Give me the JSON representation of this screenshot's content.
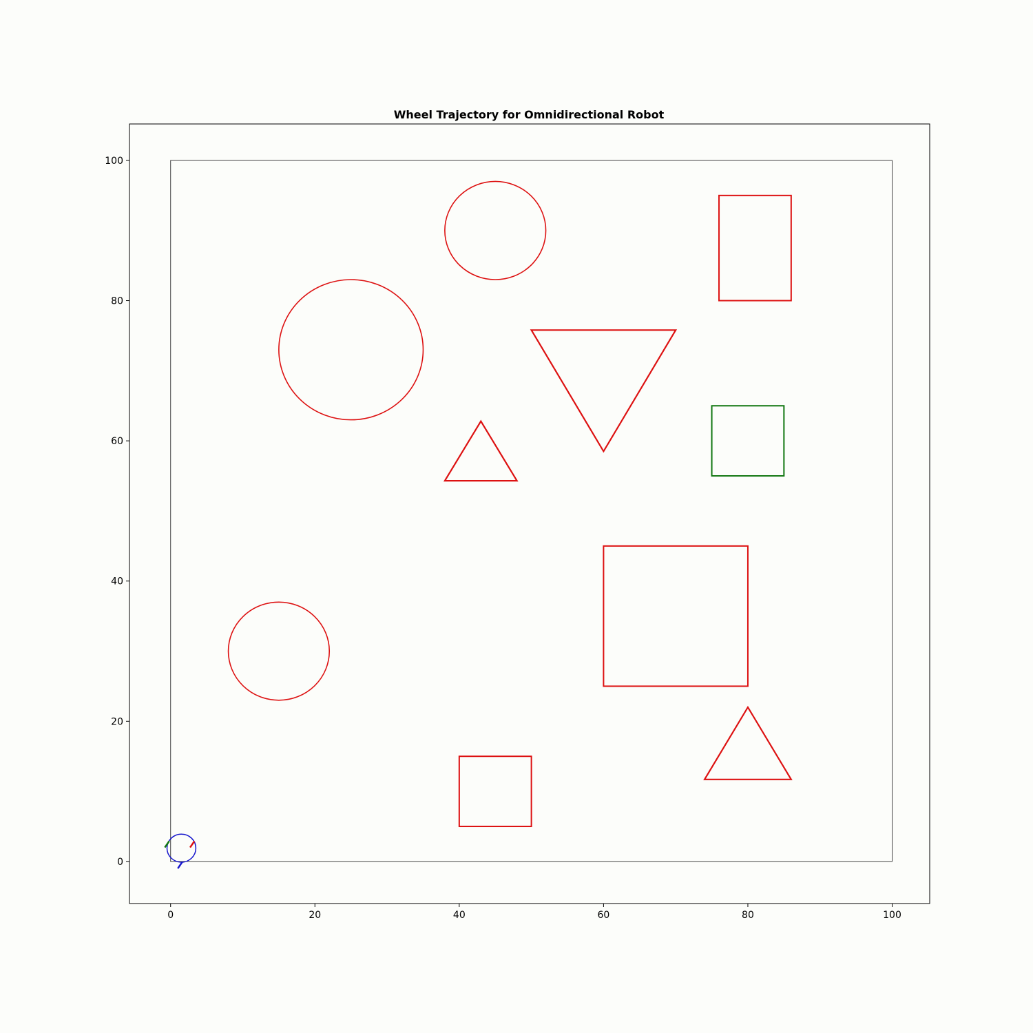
{
  "chart_data": {
    "type": "scatter",
    "title": "Wheel Trajectory for Omnidirectional Robot",
    "xlabel": "",
    "ylabel": "",
    "xlim": [
      -5.7,
      105.2
    ],
    "ylim": [
      -6.0,
      105.2
    ],
    "xticks": [
      "0",
      "20",
      "40",
      "60",
      "80",
      "100"
    ],
    "yticks": [
      "0",
      "20",
      "40",
      "60",
      "80",
      "100"
    ],
    "grid": false,
    "colors": {
      "obstacle": "#dd1111",
      "goal": "#117711",
      "robot": "#1515cc",
      "boundary": "#444444",
      "wheel_red": "#dd1111",
      "wheel_green": "#117711",
      "wheel_blue": "#1515cc"
    },
    "boundary": {
      "x": 0,
      "y": 0,
      "width": 100,
      "height": 100
    },
    "circles": [
      {
        "name": "circle-obstacle-top",
        "cx": 45,
        "cy": 90,
        "r": 7
      },
      {
        "name": "circle-obstacle-large",
        "cx": 25,
        "cy": 73,
        "r": 10
      },
      {
        "name": "circle-obstacle-bottom-left",
        "cx": 15,
        "cy": 30,
        "r": 7
      }
    ],
    "rectangles": [
      {
        "name": "rect-obstacle-top-right",
        "x": 76,
        "y": 80,
        "w": 10,
        "h": 15,
        "role": "obstacle"
      },
      {
        "name": "rect-goal",
        "x": 75,
        "y": 55,
        "w": 10,
        "h": 10,
        "role": "goal"
      },
      {
        "name": "rect-obstacle-large",
        "x": 60,
        "y": 25,
        "w": 20,
        "h": 20,
        "role": "obstacle"
      },
      {
        "name": "rect-obstacle-bottom",
        "x": 40,
        "y": 5,
        "w": 10,
        "h": 10,
        "role": "obstacle"
      }
    ],
    "triangles": [
      {
        "name": "triangle-obstacle-inverted",
        "points": [
          [
            50,
            75.8
          ],
          [
            70,
            75.8
          ],
          [
            60,
            58.5
          ]
        ]
      },
      {
        "name": "triangle-obstacle-small",
        "points": [
          [
            38,
            54.3
          ],
          [
            48,
            54.3
          ],
          [
            43,
            62.8
          ]
        ]
      },
      {
        "name": "triangle-obstacle-bottom-right",
        "points": [
          [
            74,
            11.7
          ],
          [
            86,
            11.7
          ],
          [
            80,
            22.0
          ]
        ]
      }
    ],
    "robot": {
      "body": {
        "cx": 1.5,
        "cy": 1.9,
        "r": 2
      },
      "wheels": [
        {
          "name": "wheel-green",
          "color_key": "wheel_green",
          "points": [
            [
              -0.8,
              2.0
            ],
            [
              -0.2,
              2.9
            ]
          ]
        },
        {
          "name": "wheel-red",
          "color_key": "wheel_red",
          "points": [
            [
              2.7,
              2.0
            ],
            [
              3.3,
              2.9
            ]
          ]
        },
        {
          "name": "wheel-blue",
          "color_key": "wheel_blue",
          "points": [
            [
              1.0,
              -1.0
            ],
            [
              1.6,
              -0.1
            ]
          ]
        }
      ]
    }
  }
}
